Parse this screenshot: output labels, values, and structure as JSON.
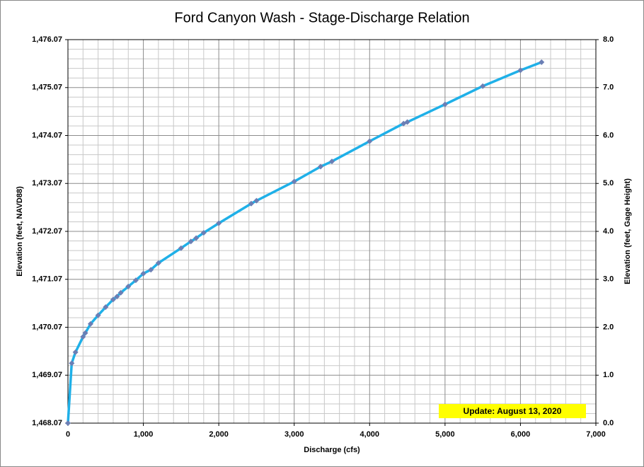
{
  "chart_data": {
    "type": "line",
    "title": "Ford Canyon Wash - Stage-Discharge Relation",
    "x_label": "Discharge  (cfs)",
    "y_label": "Elevation (feet, NAVD88)",
    "y2_label": "Elevation (feet, Gage Height)",
    "annotation": "Update: August 13, 2020",
    "x": [
      0,
      50,
      100,
      200,
      230,
      300,
      400,
      500,
      600,
      650,
      700,
      800,
      900,
      1000,
      1100,
      1200,
      1500,
      1630,
      1700,
      1800,
      2000,
      2430,
      2500,
      3000,
      3350,
      3500,
      4000,
      4450,
      4500,
      5000,
      5500,
      6000,
      6280
    ],
    "series": [
      {
        "color": "#1fb0e8",
        "marker_color": "#6b7fb5",
        "axis": "y2",
        "values": [
          0,
          1.25,
          1.48,
          1.8,
          1.88,
          2.07,
          2.25,
          2.42,
          2.58,
          2.64,
          2.72,
          2.85,
          2.98,
          3.12,
          3.2,
          3.34,
          3.65,
          3.79,
          3.86,
          3.97,
          4.17,
          4.58,
          4.64,
          5.04,
          5.35,
          5.46,
          5.88,
          6.25,
          6.28,
          6.65,
          7.03,
          7.36,
          7.53
        ]
      }
    ],
    "xlim": [
      0,
      7000
    ],
    "xticks": [
      0,
      {
        "value": 1000,
        "label": "1,000"
      },
      {
        "value": 2000,
        "label": "2,000"
      },
      {
        "value": 3000,
        "label": "3,000"
      },
      {
        "value": 4000,
        "label": "4,000"
      },
      {
        "value": 5000,
        "label": "5,000"
      },
      {
        "value": 6000,
        "label": "6,000"
      },
      {
        "value": 7000,
        "label": "7,000"
      }
    ],
    "ylim": [
      1468.07,
      1476.07
    ],
    "yticks": [
      {
        "value": 1468.07,
        "label": "1,468.07"
      },
      {
        "value": 1469.07,
        "label": "1,469.07"
      },
      {
        "value": 1470.07,
        "label": "1,470.07"
      },
      {
        "value": 1471.07,
        "label": "1,471.07"
      },
      {
        "value": 1472.07,
        "label": "1,472.07"
      },
      {
        "value": 1473.07,
        "label": "1,473.07"
      },
      {
        "value": 1474.07,
        "label": "1,474.07"
      },
      {
        "value": 1475.07,
        "label": "1,475.07"
      },
      {
        "value": 1476.07,
        "label": "1,476.07"
      }
    ],
    "y2lim": [
      0,
      8
    ],
    "y2ticks": [
      {
        "value": 0,
        "label": "0.0"
      },
      {
        "value": 1,
        "label": "1.0"
      },
      {
        "value": 2,
        "label": "2.0"
      },
      {
        "value": 3,
        "label": "3.0"
      },
      {
        "value": 4,
        "label": "4.0"
      },
      {
        "value": 5,
        "label": "5.0"
      },
      {
        "value": 6,
        "label": "6.0"
      },
      {
        "value": 7,
        "label": "7.0"
      },
      {
        "value": 8,
        "label": "8.0"
      }
    ],
    "grid": true
  }
}
